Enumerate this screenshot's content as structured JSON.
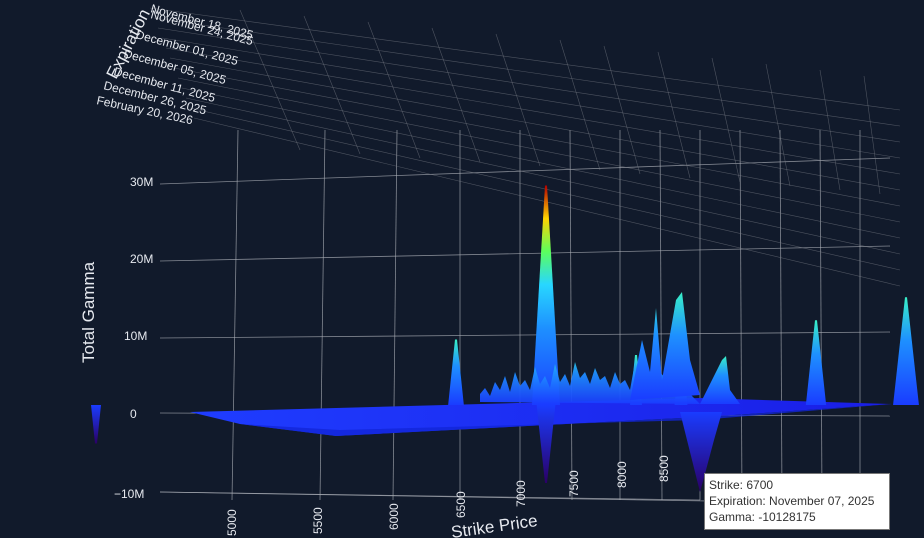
{
  "chart_data": {
    "type": "surface3d",
    "xlabel": "Strike Price",
    "ylabel": "Expiration",
    "zlabel": "Total Gamma",
    "x_ticks": [
      "5000",
      "5500",
      "6000",
      "6500",
      "7000",
      "7500",
      "8000",
      "8500"
    ],
    "expiration_ticks": [
      "November 18, 2025",
      "November 24, 2025",
      "December 01, 2025",
      "December 05, 2025",
      "December 11, 2025",
      "December 26, 2025",
      "February 20, 2026"
    ],
    "z_ticks": [
      "30M",
      "20M",
      "10M",
      "0",
      "−10M"
    ],
    "zlim": [
      -10000000,
      30000000
    ],
    "peaks": [
      {
        "strike": 6700,
        "gamma": 28500000
      },
      {
        "strike": 6600,
        "gamma": 8500000
      },
      {
        "strike": 6800,
        "gamma": 6500000
      },
      {
        "strike": 6850,
        "gamma": 7000000
      },
      {
        "strike": 7000,
        "gamma": 11000000
      },
      {
        "strike": 7100,
        "gamma": 14000000
      },
      {
        "strike": 7150,
        "gamma": 6000000
      },
      {
        "strike": 7200,
        "gamma": 7500000
      },
      {
        "strike": 5600,
        "gamma": -4000000
      },
      {
        "strike": 5800,
        "gamma": -3500000
      },
      {
        "strike": 6200,
        "gamma": -5000000
      },
      {
        "strike": 6700,
        "gamma": -10128175
      }
    ],
    "colorscale": [
      "#1400c8",
      "#1a3cff",
      "#1e90ff",
      "#28d7ff",
      "#5cff5c",
      "#ffd400",
      "#ff4a00",
      "#b40000"
    ]
  },
  "tooltip": {
    "strike": "Strike: 6700",
    "expiration": "Expiration: November 07, 2025",
    "gamma": "Gamma: -10128175"
  }
}
